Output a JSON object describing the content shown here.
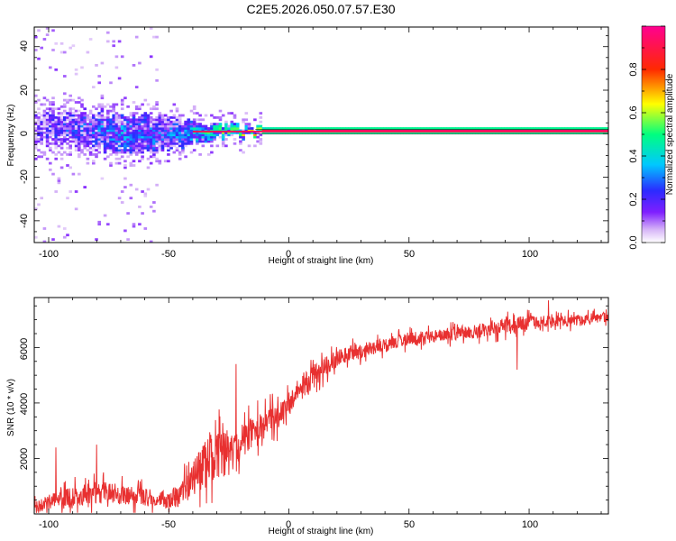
{
  "figure_title": "C2E5.2026.050.07.57.E30",
  "chart_data": [
    {
      "type": "heatmap",
      "title": "",
      "xlabel": "Height of straight line (km)",
      "ylabel": "Frequency (Hz)",
      "xlim": [
        -106,
        133
      ],
      "ylim": [
        -50,
        49
      ],
      "xticks": [
        -100,
        -50,
        0,
        50,
        100
      ],
      "xtick_labels": [
        "-100",
        "-50",
        "0",
        "50",
        "100"
      ],
      "yticks": [
        -40,
        -20,
        0,
        20,
        40
      ],
      "ytick_labels": [
        "-40",
        "-20",
        "0",
        "20",
        "40"
      ],
      "colorbar": {
        "label": "Normalized spectral amplitude",
        "range": [
          0,
          1
        ],
        "ticks": [
          0.0,
          0.2,
          0.4,
          0.6,
          0.8
        ],
        "tick_labels": [
          "0.0",
          "0.2",
          "0.4",
          "0.6",
          "0.8"
        ],
        "colormap": [
          "#ffffff",
          "#d6b4f7",
          "#7f1fff",
          "#2b2bff",
          "#00c8ff",
          "#00ff7f",
          "#ffff00",
          "#ff2a00",
          "#ff0090"
        ]
      },
      "band_profile": {
        "x": [
          -106,
          -90,
          -70,
          -50,
          -40,
          -30,
          -20,
          -10,
          0,
          20,
          50,
          100,
          133
        ],
        "center_freq_hz": [
          2,
          2,
          0,
          -1,
          0,
          1,
          0,
          1,
          1,
          1,
          1,
          1,
          1
        ],
        "half_width_hz": [
          8,
          8,
          9,
          8,
          5,
          3,
          2,
          1.5,
          1.5,
          1.5,
          1.5,
          1.5,
          1.5
        ],
        "peak_amplitude": [
          0.15,
          0.2,
          0.3,
          0.25,
          0.4,
          0.55,
          0.6,
          0.75,
          0.8,
          0.8,
          0.8,
          0.8,
          0.8
        ]
      }
    },
    {
      "type": "line",
      "title": "",
      "xlabel": "Height of straight line (km)",
      "ylabel": "SNR (10 * v/v)",
      "xlim": [
        -106,
        133
      ],
      "ylim": [
        0,
        7800
      ],
      "xticks": [
        -100,
        -50,
        0,
        50,
        100
      ],
      "xtick_labels": [
        "-100",
        "-50",
        "0",
        "50",
        "100"
      ],
      "yticks": [
        2000,
        4000,
        6000
      ],
      "ytick_labels": [
        "2000",
        "4000",
        "6000"
      ],
      "color": "#e83030",
      "series": [
        {
          "name": "SNR",
          "x": [
            -106,
            -100,
            -90,
            -80,
            -70,
            -60,
            -50,
            -45,
            -40,
            -35,
            -30,
            -25,
            -20,
            -15,
            -10,
            -5,
            0,
            5,
            10,
            15,
            20,
            25,
            30,
            40,
            50,
            60,
            70,
            80,
            90,
            100,
            110,
            120,
            133
          ],
          "y": [
            300,
            400,
            600,
            800,
            700,
            600,
            500,
            700,
            1200,
            1800,
            2200,
            2200,
            2600,
            3000,
            3200,
            3500,
            4000,
            4500,
            4900,
            5300,
            5600,
            5800,
            5900,
            6100,
            6300,
            6400,
            6500,
            6600,
            6800,
            6900,
            6950,
            7000,
            7100
          ],
          "noise_amplitude": [
            350,
            450,
            500,
            600,
            500,
            450,
            450,
            600,
            900,
            1200,
            1300,
            1200,
            900,
            800,
            700,
            700,
            650,
            650,
            600,
            500,
            450,
            400,
            380,
            350,
            330,
            330,
            330,
            350,
            400,
            350,
            300,
            280,
            250
          ],
          "notable_spikes": [
            {
              "x": -22,
              "y": 5400
            },
            {
              "x": -80,
              "y": 2500
            },
            {
              "x": -97,
              "y": 2400
            },
            {
              "x": 108,
              "y": 7700
            },
            {
              "x": 95,
              "y": 5200
            }
          ]
        }
      ]
    }
  ]
}
